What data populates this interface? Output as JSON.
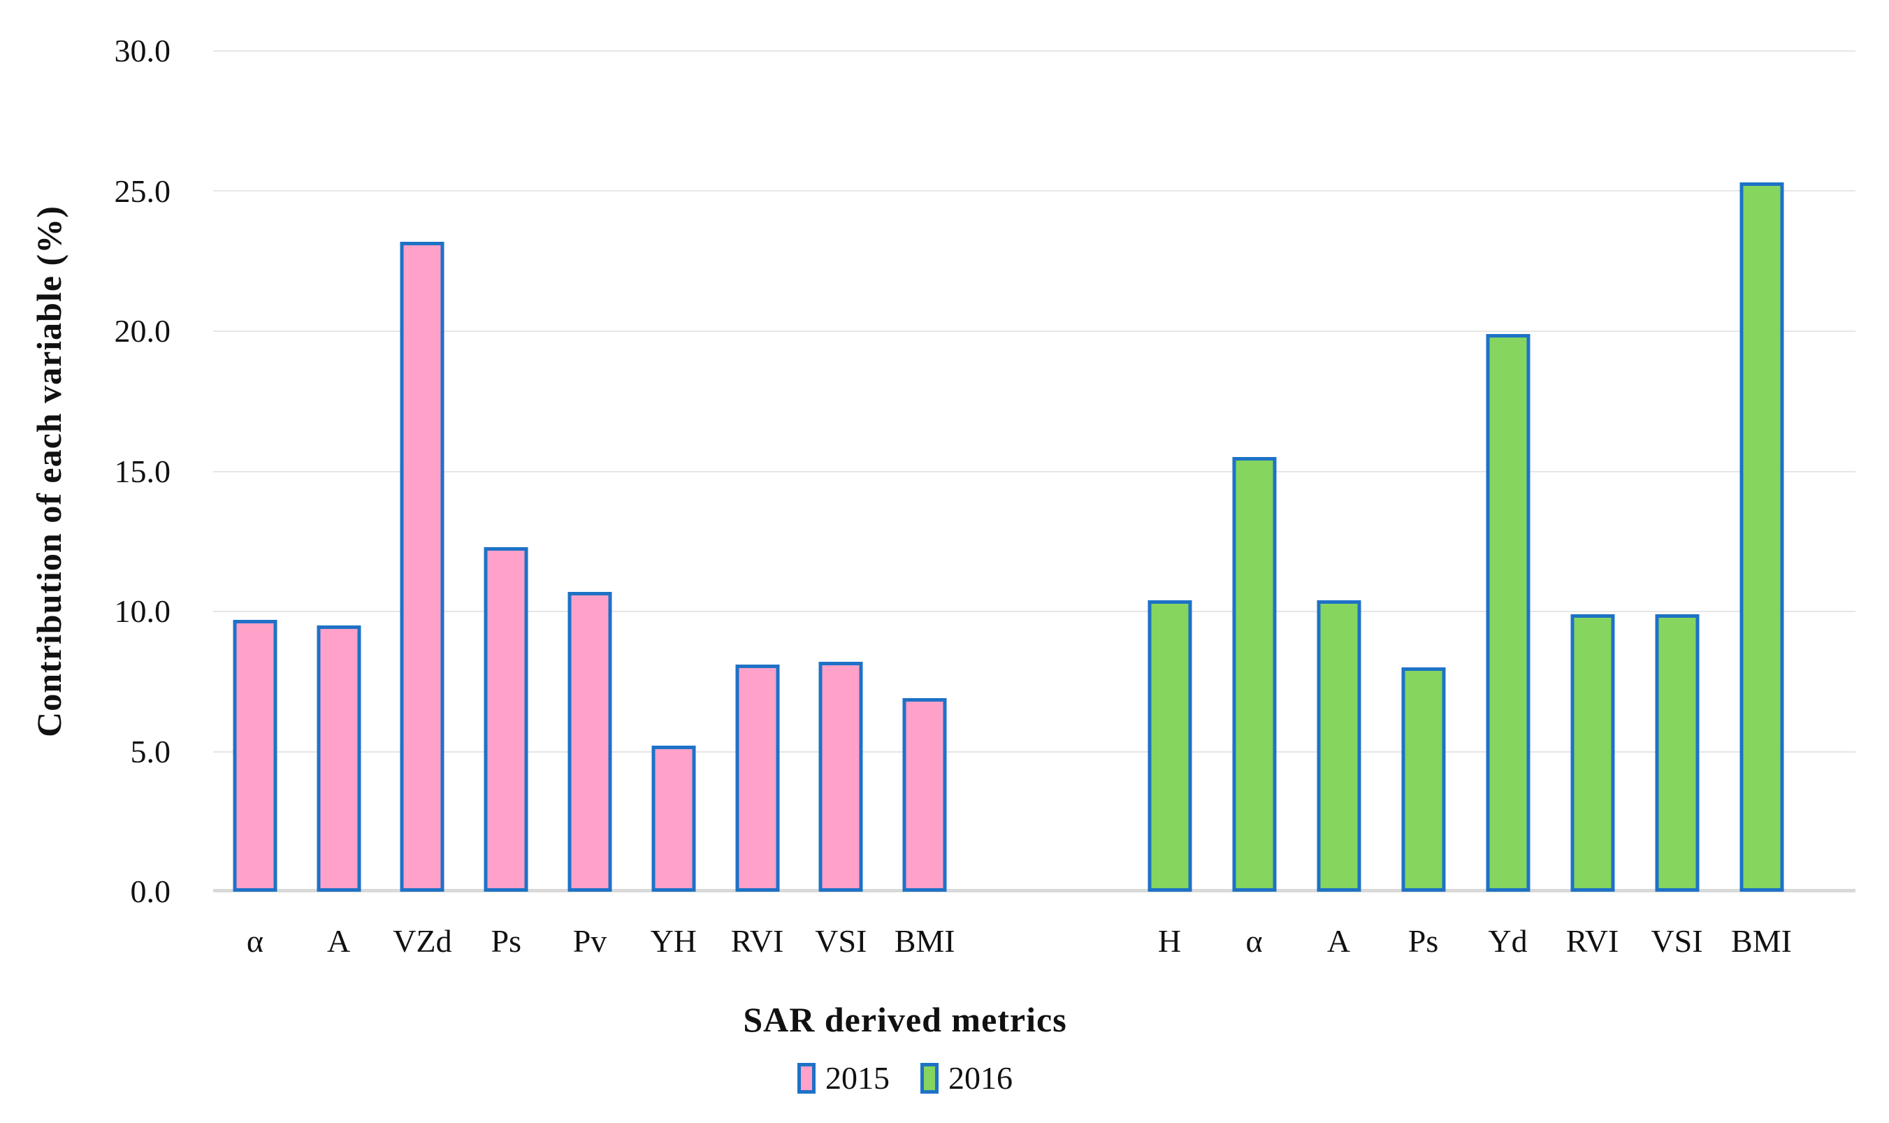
{
  "chart_data": {
    "type": "bar",
    "title": "",
    "xlabel": "SAR derived metrics",
    "ylabel": "Contribution of each variable (%)",
    "ylim": [
      0,
      30
    ],
    "ytick_labels": [
      "30.0",
      "25.0",
      "20.0",
      "15.0",
      "10.0",
      "5.0",
      "0.0"
    ],
    "grid": "horizontal-light-gray",
    "legend_position": "bottom",
    "bar_border_color": "#1E72C6",
    "gridline_color": "#E6E6E6",
    "baseline_color": "#D9D9D9",
    "series": [
      {
        "name": "2015",
        "color": "#FFA1C9",
        "categories": [
          "α",
          "A",
          "VZd",
          "Ps",
          "Pv",
          "YH",
          "RVI",
          "VSI",
          "BMI"
        ],
        "values": [
          9.7,
          9.5,
          23.2,
          12.3,
          10.7,
          5.2,
          8.1,
          8.2,
          6.9
        ]
      },
      {
        "name": "2016",
        "color": "#85D55F",
        "categories": [
          "H",
          "α",
          "A",
          "Ps",
          "Yd",
          "RVI",
          "VSI",
          "BMI"
        ],
        "values": [
          10.4,
          15.5,
          10.4,
          8.0,
          19.9,
          9.9,
          9.9,
          25.3
        ]
      }
    ]
  }
}
